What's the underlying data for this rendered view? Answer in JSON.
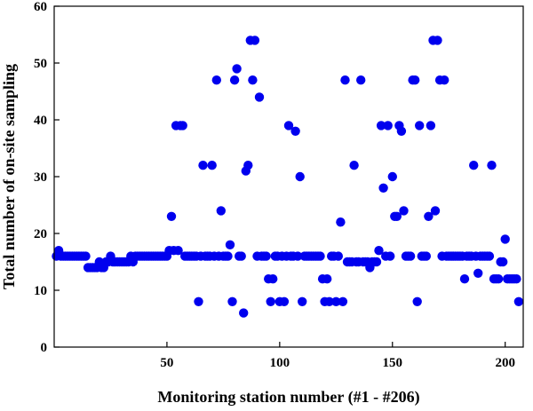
{
  "chart_data": {
    "type": "scatter",
    "title": "",
    "xlabel": "Monitoring station number (#1 - #206)",
    "ylabel": "Total number of on-site sampling",
    "xlim": [
      0,
      208
    ],
    "ylim": [
      0,
      60
    ],
    "xticks": [
      50,
      100,
      150,
      200
    ],
    "yticks": [
      0,
      10,
      20,
      30,
      40,
      50,
      60
    ],
    "grid": false,
    "legend": "none",
    "point_color": "#0000ee",
    "x": [
      1,
      2,
      3,
      4,
      5,
      6,
      7,
      8,
      9,
      10,
      11,
      12,
      13,
      14,
      15,
      16,
      17,
      18,
      19,
      20,
      21,
      22,
      23,
      24,
      25,
      26,
      27,
      28,
      29,
      30,
      31,
      32,
      33,
      34,
      35,
      36,
      37,
      38,
      39,
      40,
      41,
      42,
      43,
      44,
      45,
      46,
      47,
      48,
      49,
      50,
      51,
      52,
      53,
      54,
      55,
      56,
      57,
      58,
      59,
      60,
      61,
      62,
      63,
      64,
      65,
      66,
      67,
      68,
      69,
      70,
      71,
      72,
      73,
      74,
      75,
      76,
      77,
      78,
      79,
      80,
      81,
      82,
      83,
      84,
      85,
      86,
      87,
      88,
      89,
      90,
      91,
      92,
      93,
      94,
      95,
      96,
      97,
      98,
      99,
      100,
      101,
      102,
      103,
      104,
      105,
      106,
      107,
      108,
      109,
      110,
      111,
      112,
      113,
      114,
      115,
      116,
      117,
      118,
      119,
      120,
      121,
      122,
      123,
      124,
      125,
      126,
      127,
      128,
      129,
      130,
      131,
      132,
      133,
      134,
      135,
      136,
      137,
      138,
      139,
      140,
      141,
      142,
      143,
      144,
      145,
      146,
      147,
      148,
      149,
      150,
      151,
      152,
      153,
      154,
      155,
      156,
      157,
      158,
      159,
      160,
      161,
      162,
      163,
      164,
      165,
      166,
      167,
      168,
      169,
      170,
      171,
      172,
      173,
      174,
      175,
      176,
      177,
      178,
      179,
      180,
      181,
      182,
      183,
      184,
      185,
      186,
      187,
      188,
      189,
      190,
      191,
      192,
      193,
      194,
      195,
      196,
      197,
      198,
      199,
      200,
      201,
      202,
      203,
      204,
      205,
      206
    ],
    "y": [
      16,
      17,
      16,
      16,
      16,
      16,
      16,
      16,
      16,
      16,
      16,
      16,
      16,
      16,
      14,
      14,
      14,
      14,
      14,
      15,
      14,
      14,
      15,
      15,
      16,
      15,
      15,
      15,
      15,
      15,
      15,
      15,
      15,
      16,
      15,
      16,
      16,
      16,
      16,
      16,
      16,
      16,
      16,
      16,
      16,
      16,
      16,
      16,
      16,
      16,
      17,
      23,
      17,
      39,
      17,
      39,
      39,
      16,
      16,
      16,
      16,
      16,
      16,
      8,
      16,
      32,
      16,
      16,
      16,
      32,
      16,
      47,
      16,
      24,
      16,
      16,
      16,
      18,
      8,
      47,
      49,
      16,
      16,
      6,
      31,
      32,
      54,
      47,
      54,
      16,
      44,
      16,
      16,
      16,
      12,
      8,
      12,
      16,
      16,
      8,
      16,
      8,
      16,
      39,
      16,
      16,
      38,
      16,
      30,
      8,
      16,
      16,
      16,
      16,
      16,
      16,
      16,
      16,
      12,
      8,
      12,
      8,
      16,
      16,
      8,
      16,
      22,
      8,
      47,
      15,
      15,
      15,
      32,
      15,
      15,
      47,
      15,
      15,
      15,
      14,
      15,
      15,
      15,
      17,
      39,
      28,
      16,
      39,
      16,
      30,
      23,
      23,
      39,
      38,
      24,
      16,
      16,
      16,
      47,
      47,
      8,
      39,
      16,
      16,
      16,
      23,
      39,
      54,
      24,
      54,
      47,
      16,
      47,
      16,
      16,
      16,
      16,
      16,
      16,
      16,
      16,
      12,
      16,
      16,
      16,
      32,
      16,
      13,
      16,
      16,
      16,
      16,
      16,
      32,
      12,
      12,
      12,
      15,
      15,
      19,
      12,
      12,
      12,
      12,
      12,
      8
    ]
  }
}
